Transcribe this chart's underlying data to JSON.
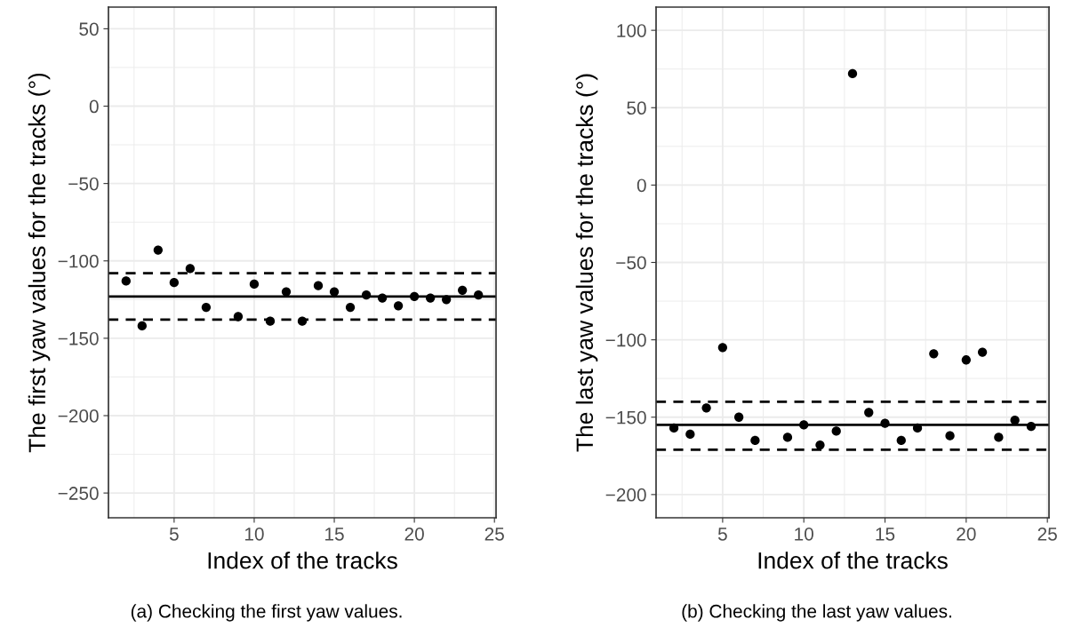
{
  "chart_data": [
    {
      "type": "scatter",
      "xlabel": "Index of the tracks",
      "ylabel": "The first yaw values for the tracks (°)",
      "x": [
        2,
        3,
        4,
        5,
        6,
        7,
        9,
        10,
        11,
        12,
        13,
        14,
        15,
        16,
        17,
        18,
        19,
        20,
        21,
        22,
        23,
        24
      ],
      "series": [
        {
          "color": "#000000",
          "values": [
            -113,
            -142,
            -93,
            -114,
            -105,
            -130,
            -136,
            -115,
            -139,
            -120,
            -139,
            -116,
            -120,
            -130,
            -122,
            -124,
            -129,
            -123,
            -124,
            -125,
            -119,
            -122
          ]
        }
      ],
      "marker": "circle",
      "grid": true,
      "xlim": [
        0.9,
        25.1
      ],
      "ylim": [
        -266,
        64
      ],
      "xticks": [
        5,
        10,
        15,
        20,
        25
      ],
      "yticks": [
        -250,
        -200,
        -150,
        -100,
        -50,
        0,
        50
      ],
      "ref_lines": [
        {
          "axis": "y",
          "value": -123,
          "line_style": "solid",
          "color": "#000000"
        },
        {
          "axis": "y",
          "value": -108,
          "line_style": "dashed",
          "color": "#000000"
        },
        {
          "axis": "y",
          "value": -138,
          "line_style": "dashed",
          "color": "#000000"
        }
      ],
      "annotations": [
        "(a) Checking the first yaw values."
      ]
    },
    {
      "type": "scatter",
      "xlabel": "Index of the tracks",
      "ylabel": "The last yaw values for the tracks (°)",
      "x": [
        2,
        3,
        4,
        5,
        6,
        7,
        9,
        10,
        11,
        12,
        13,
        14,
        15,
        16,
        17,
        18,
        19,
        20,
        21,
        22,
        23,
        24
      ],
      "series": [
        {
          "color": "#000000",
          "values": [
            -157,
            -161,
            -144,
            -105,
            -150,
            -165,
            -163,
            -155,
            -168,
            -159,
            72,
            -147,
            -154,
            -165,
            -157,
            -109,
            -162,
            -113,
            -108,
            -163,
            -152,
            -156
          ]
        }
      ],
      "marker": "circle",
      "grid": true,
      "xlim": [
        0.9,
        25.1
      ],
      "ylim": [
        -215,
        115
      ],
      "xticks": [
        5,
        10,
        15,
        20,
        25
      ],
      "yticks": [
        -200,
        -150,
        -100,
        -50,
        0,
        50,
        100
      ],
      "ref_lines": [
        {
          "axis": "y",
          "value": -155,
          "line_style": "solid",
          "color": "#000000"
        },
        {
          "axis": "y",
          "value": -140,
          "line_style": "dashed",
          "color": "#000000"
        },
        {
          "axis": "y",
          "value": -171,
          "line_style": "dashed",
          "color": "#000000"
        }
      ],
      "annotations": [
        "(b) Checking the last yaw values."
      ]
    }
  ]
}
